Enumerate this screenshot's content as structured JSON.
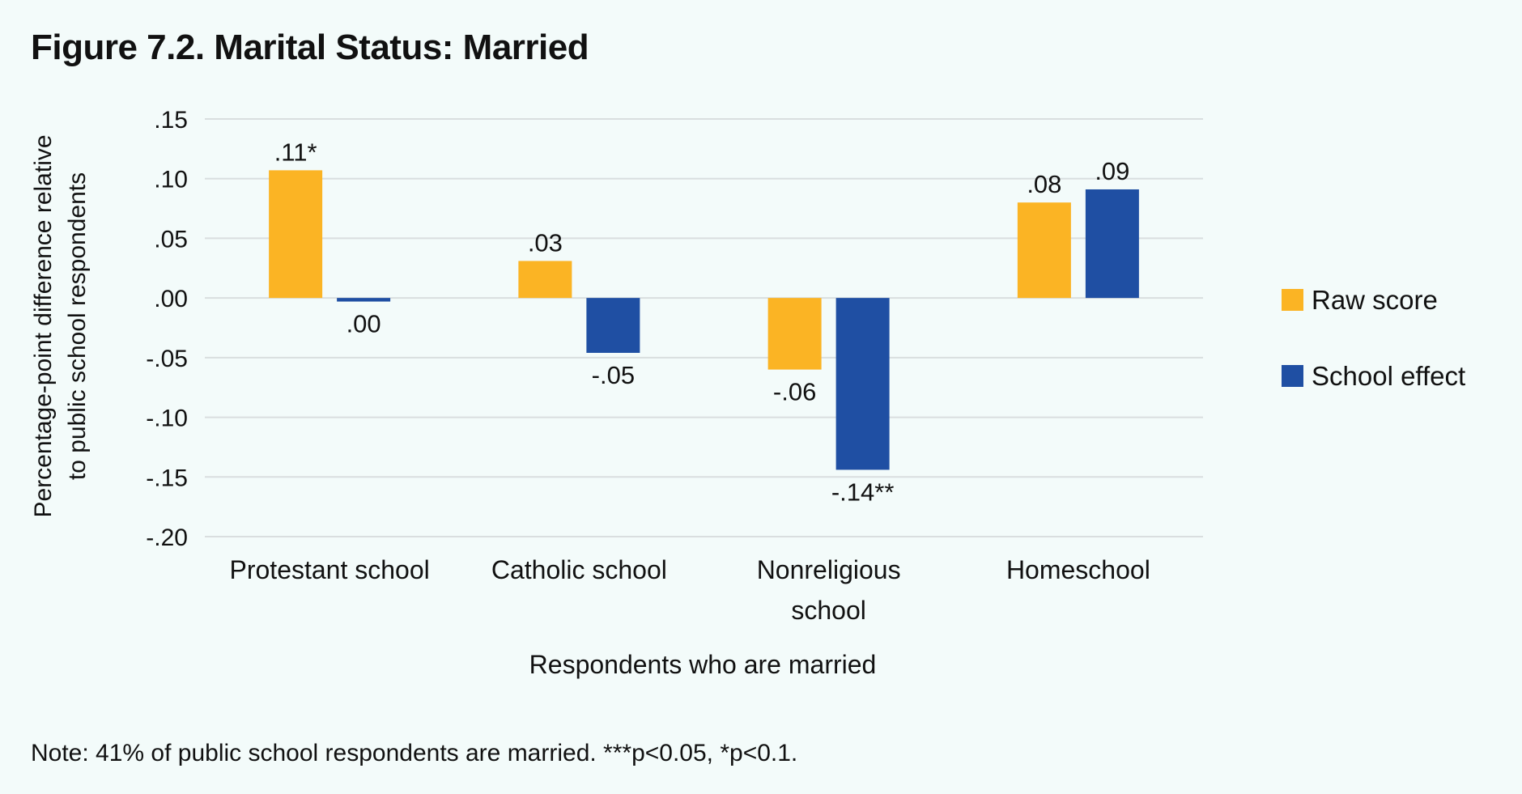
{
  "figure_title": "Figure 7.2. Marital Status: Married",
  "note": "Note: 41% of public school respondents are married. ***p<0.05, *p<0.1.",
  "colors": {
    "raw_score": "#fbb424",
    "school_effect": "#1f4fa3",
    "grid": "#d9dedf",
    "background": "#f3fbfa"
  },
  "chart_data": {
    "type": "bar",
    "title": "Figure 7.2. Marital Status: Married",
    "xlabel": "Respondents who are married",
    "ylabel": "Percentage-point difference relative to public school respondents",
    "ylabel_lines": [
      "Percentage-point difference relative",
      "to public school respondents"
    ],
    "ylim": [
      -0.2,
      0.15
    ],
    "yticks": [
      0.15,
      0.1,
      0.05,
      0.0,
      -0.05,
      -0.1,
      -0.15,
      -0.2
    ],
    "ytick_labels": [
      ".15",
      ".10",
      ".05",
      ".00",
      "-.05",
      "-.10",
      "-.15",
      "-.20"
    ],
    "grid": true,
    "legend_position": "right",
    "categories": [
      [
        "Protestant school"
      ],
      [
        "Catholic school"
      ],
      [
        "Nonreligious",
        "school"
      ],
      [
        "Homeschool"
      ]
    ],
    "series": [
      {
        "name": "Raw score",
        "color": "#fbb424",
        "values": [
          0.107,
          0.031,
          -0.06,
          0.08
        ],
        "labels": [
          ".11*",
          ".03",
          "-.06",
          ".08"
        ]
      },
      {
        "name": "School effect",
        "color": "#1f4fa3",
        "values": [
          -0.003,
          -0.046,
          -0.144,
          0.091
        ],
        "labels": [
          ".00",
          "-.05",
          "-.14**",
          ".09"
        ]
      }
    ]
  }
}
